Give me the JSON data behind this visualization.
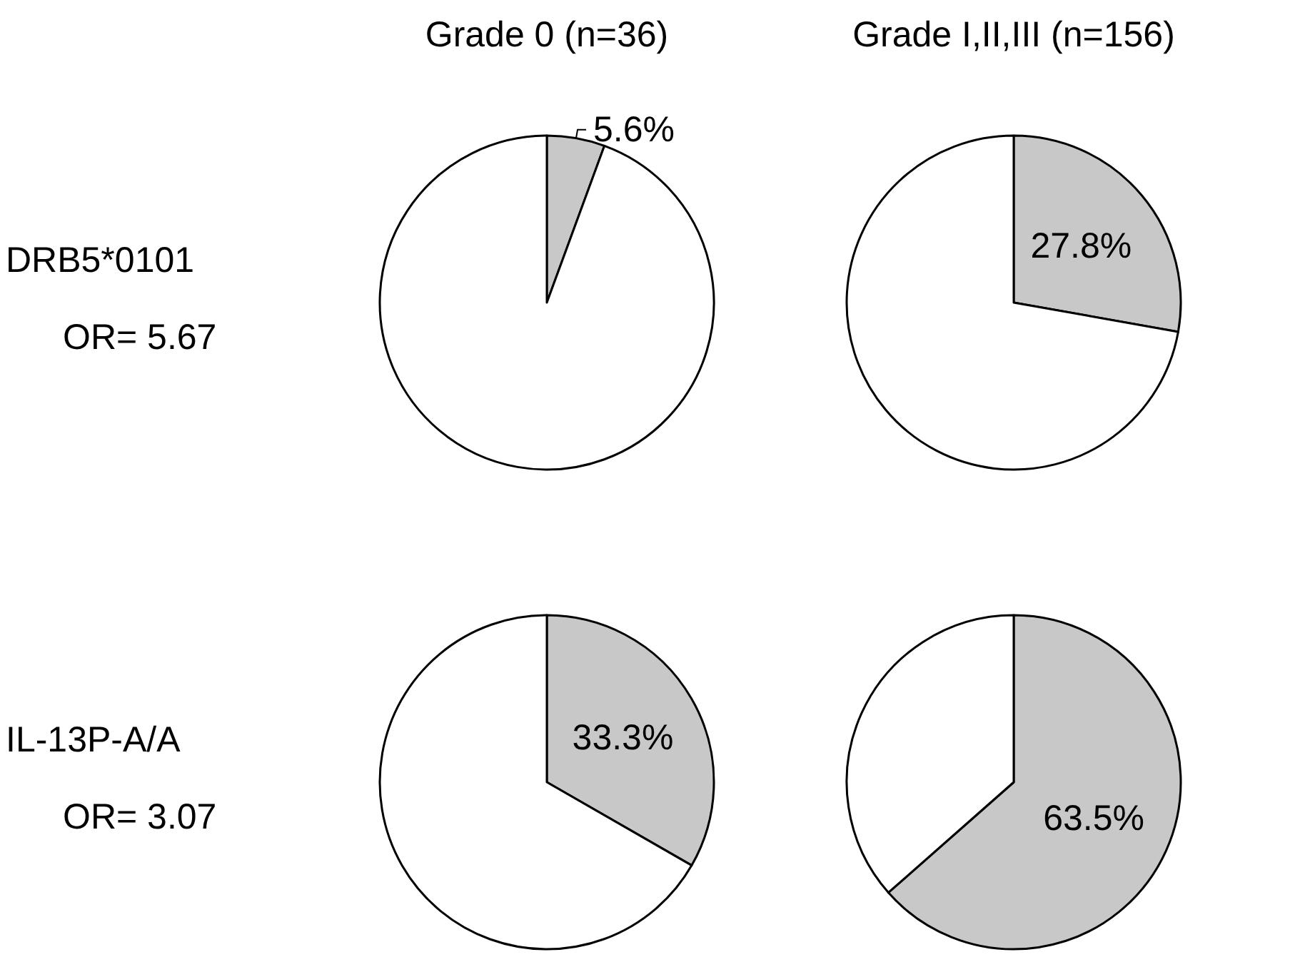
{
  "chart_data": [
    {
      "type": "pie",
      "title": "Grade 0 (n=36)",
      "annotations": [
        "DRB5*0101",
        "OR= 5.67"
      ],
      "categories": [
        null,
        null
      ],
      "values": [
        5.6,
        94.4
      ],
      "colors": [
        "#c8c8c8",
        "#ffffff"
      ],
      "value_labels": [
        "5.6%",
        null
      ]
    },
    {
      "type": "pie",
      "title": "Grade I,II,III (n=156)",
      "categories": [
        null,
        null
      ],
      "values": [
        27.8,
        72.2
      ],
      "colors": [
        "#c8c8c8",
        "#ffffff"
      ],
      "value_labels": [
        "27.8%",
        null
      ]
    },
    {
      "type": "pie",
      "annotations": [
        "IL-13P-A/A",
        "OR= 3.07"
      ],
      "categories": [
        null,
        null
      ],
      "values": [
        33.3,
        66.7
      ],
      "colors": [
        "#c8c8c8",
        "#ffffff"
      ],
      "value_labels": [
        "33.3%",
        null
      ]
    },
    {
      "type": "pie",
      "categories": [
        null,
        null
      ],
      "values": [
        63.5,
        36.5
      ],
      "colors": [
        "#c8c8c8",
        "#ffffff"
      ],
      "value_labels": [
        "63.5%",
        null
      ]
    }
  ]
}
